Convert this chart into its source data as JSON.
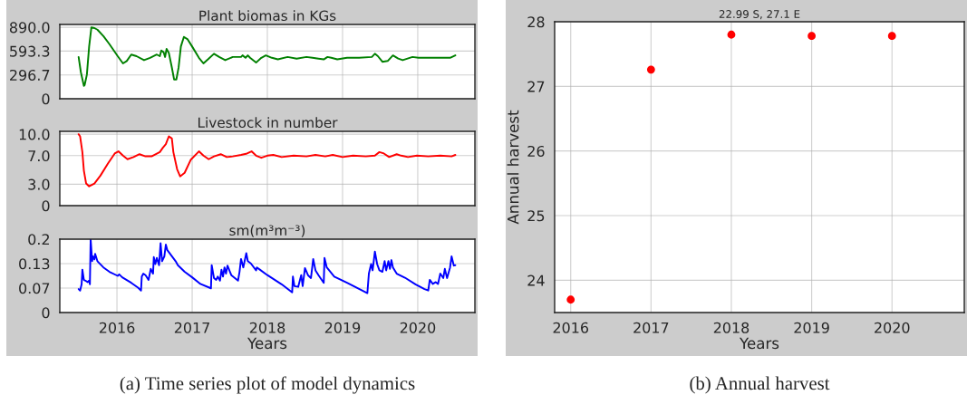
{
  "chart_data": [
    {
      "type": "line",
      "title": "Plant biomas in KGs",
      "color": "#008000",
      "grid": true,
      "tick_labels": "y",
      "xlim": [
        2015.24,
        2020.76
      ],
      "xticks": [
        {
          "value": 2016,
          "label": null
        },
        {
          "value": 2017,
          "label": null
        },
        {
          "value": 2018,
          "label": null
        },
        {
          "value": 2019,
          "label": null
        },
        {
          "value": 2020,
          "label": null
        }
      ],
      "ylim": [
        0,
        925
      ],
      "yticks": [
        0,
        {
          "value": 296.7,
          "label": "296.7"
        },
        {
          "value": 593.3,
          "label": "593.3"
        },
        {
          "value": 890,
          "label": "890.0"
        }
      ],
      "x": [
        2015.49,
        2015.52,
        2015.56,
        2015.57,
        2015.6,
        2015.63,
        2015.66,
        2015.7,
        2015.74,
        2015.82,
        2015.9,
        2016.01,
        2016.08,
        2016.13,
        2016.19,
        2016.26,
        2016.36,
        2016.44,
        2016.53,
        2016.57,
        2016.59,
        2016.62,
        2016.64,
        2016.66,
        2016.69,
        2016.73,
        2016.76,
        2016.79,
        2016.82,
        2016.85,
        2016.89,
        2016.94,
        2017.0,
        2017.09,
        2017.15,
        2017.21,
        2017.29,
        2017.36,
        2017.44,
        2017.54,
        2017.65,
        2017.67,
        2017.71,
        2017.74,
        2017.77,
        2017.85,
        2017.92,
        2017.98,
        2018.06,
        2018.14,
        2018.27,
        2018.39,
        2018.52,
        2018.6,
        2018.68,
        2018.75,
        2018.8,
        2018.85,
        2018.93,
        2019.06,
        2019.22,
        2019.39,
        2019.43,
        2019.47,
        2019.53,
        2019.6,
        2019.67,
        2019.74,
        2019.8,
        2019.93,
        2020.01,
        2020.18,
        2020.34,
        2020.43,
        2020.5
      ],
      "values": [
        520,
        330,
        160,
        170,
        300,
        650,
        890,
        880,
        860,
        780,
        680,
        530,
        440,
        470,
        550,
        530,
        480,
        510,
        550,
        530,
        600,
        580,
        520,
        620,
        570,
        390,
        240,
        240,
        390,
        650,
        770,
        740,
        650,
        510,
        440,
        490,
        560,
        520,
        480,
        520,
        520,
        540,
        510,
        540,
        510,
        450,
        510,
        540,
        510,
        490,
        520,
        500,
        520,
        510,
        500,
        490,
        520,
        510,
        490,
        510,
        510,
        520,
        560,
        530,
        460,
        470,
        540,
        500,
        480,
        520,
        510,
        510,
        510,
        510,
        540
      ]
    },
    {
      "type": "line",
      "title": "Livestock in number",
      "color": "#ff0000",
      "grid": true,
      "tick_labels": "y",
      "xlim": [
        2015.24,
        2020.76
      ],
      "xticks": [
        {
          "value": 2016,
          "label": null
        },
        {
          "value": 2017,
          "label": null
        },
        {
          "value": 2018,
          "label": null
        },
        {
          "value": 2019,
          "label": null
        },
        {
          "value": 2020,
          "label": null
        }
      ],
      "ylim": [
        0,
        10.4
      ],
      "yticks": [
        0,
        {
          "value": 3,
          "label": "3.0"
        },
        {
          "value": 7,
          "label": "7.0"
        },
        {
          "value": 10,
          "label": "10.0"
        }
      ],
      "x": [
        2015.49,
        2015.51,
        2015.54,
        2015.56,
        2015.59,
        2015.63,
        2015.7,
        2015.78,
        2015.88,
        2015.97,
        2016.02,
        2016.08,
        2016.14,
        2016.22,
        2016.3,
        2016.38,
        2016.46,
        2016.57,
        2016.61,
        2016.65,
        2016.69,
        2016.73,
        2016.75,
        2016.8,
        2016.84,
        2016.9,
        2016.98,
        2017.09,
        2017.15,
        2017.22,
        2017.29,
        2017.38,
        2017.46,
        2017.54,
        2017.65,
        2017.73,
        2017.79,
        2017.85,
        2017.92,
        2018.0,
        2018.08,
        2018.19,
        2018.35,
        2018.52,
        2018.64,
        2018.77,
        2018.87,
        2019.0,
        2019.14,
        2019.31,
        2019.43,
        2019.49,
        2019.55,
        2019.62,
        2019.72,
        2019.78,
        2019.87,
        2019.99,
        2020.14,
        2020.3,
        2020.45,
        2020.5
      ],
      "values": [
        10.0,
        9.7,
        7.5,
        4.9,
        3.1,
        2.7,
        3.1,
        4.2,
        5.9,
        7.3,
        7.6,
        7.0,
        6.5,
        6.8,
        7.2,
        6.9,
        6.9,
        7.5,
        8.1,
        8.6,
        9.7,
        9.4,
        7.5,
        5.1,
        4.1,
        4.6,
        6.4,
        7.6,
        7.0,
        6.5,
        6.9,
        7.2,
        6.8,
        6.9,
        7.1,
        7.3,
        7.6,
        7.0,
        6.7,
        7.0,
        7.1,
        6.8,
        7.0,
        6.9,
        7.1,
        6.9,
        7.1,
        6.8,
        7.0,
        6.9,
        7.0,
        7.5,
        7.3,
        6.8,
        7.2,
        7.0,
        6.8,
        7.0,
        6.9,
        7.0,
        6.9,
        7.1
      ]
    },
    {
      "type": "line",
      "title": "sm(m³m⁻³)",
      "xlabel": "Years",
      "color": "#0000ff",
      "grid": true,
      "annotations": [
        "(a) Time series plot of model dynamics"
      ],
      "xlim": [
        2015.24,
        2020.76
      ],
      "xticks": [
        2016,
        2017,
        2018,
        2019,
        2020
      ],
      "ylim": [
        0,
        0.2
      ],
      "yticks": [
        0,
        {
          "value": 0.0667,
          "label": "0.07"
        },
        {
          "value": 0.1333,
          "label": "0.13"
        },
        0.2
      ],
      "x": [
        2015.49,
        2015.51,
        2015.53,
        2015.54,
        2015.56,
        2015.58,
        2015.61,
        2015.63,
        2015.64,
        2015.65,
        2015.67,
        2015.68,
        2015.7,
        2015.71,
        2015.74,
        2015.82,
        2015.9,
        2016.01,
        2016.03,
        2016.07,
        2016.19,
        2016.28,
        2016.32,
        2016.33,
        2016.35,
        2016.38,
        2016.42,
        2016.45,
        2016.48,
        2016.49,
        2016.51,
        2016.53,
        2016.56,
        2016.58,
        2016.6,
        2016.63,
        2016.65,
        2016.67,
        2016.78,
        2016.81,
        2016.9,
        2017.0,
        2017.11,
        2017.25,
        2017.26,
        2017.29,
        2017.32,
        2017.34,
        2017.37,
        2017.39,
        2017.41,
        2017.43,
        2017.45,
        2017.47,
        2017.52,
        2017.61,
        2017.63,
        2017.65,
        2017.68,
        2017.72,
        2017.74,
        2017.78,
        2017.85,
        2017.86,
        2017.9,
        2018.0,
        2018.19,
        2018.33,
        2018.34,
        2018.36,
        2018.41,
        2018.45,
        2018.47,
        2018.5,
        2018.54,
        2018.58,
        2018.61,
        2018.64,
        2018.68,
        2018.75,
        2018.76,
        2018.79,
        2018.89,
        2019.06,
        2019.26,
        2019.33,
        2019.35,
        2019.38,
        2019.4,
        2019.43,
        2019.46,
        2019.49,
        2019.53,
        2019.56,
        2019.58,
        2019.61,
        2019.63,
        2019.65,
        2019.67,
        2019.72,
        2019.83,
        2019.97,
        2020.09,
        2020.14,
        2020.16,
        2020.2,
        2020.24,
        2020.27,
        2020.3,
        2020.34,
        2020.36,
        2020.39,
        2020.43,
        2020.45,
        2020.48,
        2020.5
      ],
      "values": [
        0.064,
        0.06,
        0.077,
        0.117,
        0.089,
        0.087,
        0.083,
        0.087,
        0.077,
        0.2,
        0.14,
        0.153,
        0.145,
        0.16,
        0.14,
        0.123,
        0.111,
        0.1,
        0.104,
        0.096,
        0.081,
        0.068,
        0.06,
        0.098,
        0.106,
        0.102,
        0.089,
        0.119,
        0.106,
        0.151,
        0.132,
        0.149,
        0.129,
        0.189,
        0.14,
        0.153,
        0.185,
        0.17,
        0.14,
        0.129,
        0.111,
        0.096,
        0.078,
        0.066,
        0.129,
        0.094,
        0.089,
        0.098,
        0.087,
        0.117,
        0.098,
        0.123,
        0.106,
        0.128,
        0.102,
        0.087,
        0.111,
        0.146,
        0.123,
        0.162,
        0.14,
        0.134,
        0.115,
        0.123,
        0.117,
        0.102,
        0.077,
        0.055,
        0.098,
        0.072,
        0.07,
        0.102,
        0.072,
        0.121,
        0.102,
        0.094,
        0.146,
        0.115,
        0.102,
        0.081,
        0.149,
        0.123,
        0.098,
        0.081,
        0.06,
        0.053,
        0.106,
        0.132,
        0.115,
        0.166,
        0.132,
        0.115,
        0.111,
        0.14,
        0.115,
        0.14,
        0.119,
        0.143,
        0.123,
        0.106,
        0.095,
        0.077,
        0.064,
        0.06,
        0.089,
        0.078,
        0.083,
        0.078,
        0.106,
        0.094,
        0.119,
        0.094,
        0.123,
        0.153,
        0.128,
        0.129
      ]
    },
    {
      "type": "scatter",
      "title": "22.99 S, 27.1 E",
      "xlabel": "Years",
      "ylabel": "Annual harvest",
      "color": "#ff0000",
      "marker": "circle",
      "grid": true,
      "annotations": [
        "(b) Annual harvest"
      ],
      "xlim": [
        2015.8,
        2020.9
      ],
      "xticks": [
        2016,
        2017,
        2018,
        2019,
        2020
      ],
      "ylim": [
        23.5,
        28
      ],
      "yticks": [
        24,
        25,
        26,
        27,
        28
      ],
      "x": [
        2016,
        2017,
        2018,
        2019,
        2020
      ],
      "values": [
        23.7,
        27.26,
        27.8,
        27.78,
        27.78
      ]
    }
  ]
}
